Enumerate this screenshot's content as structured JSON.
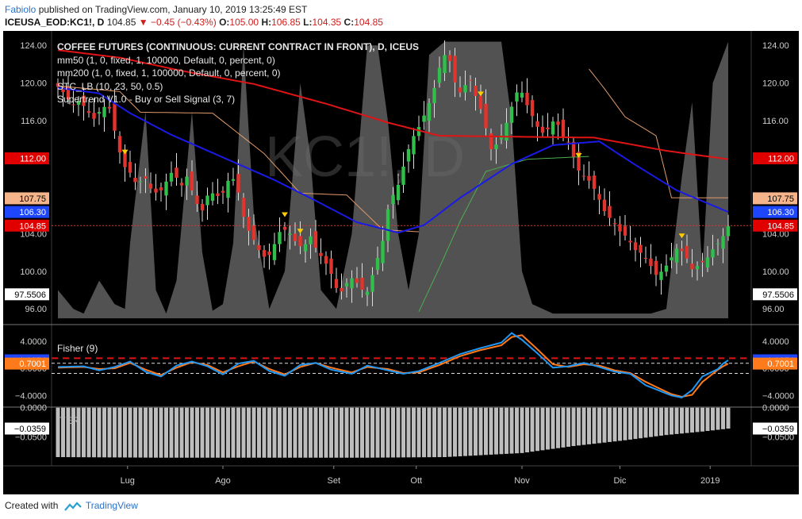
{
  "header": {
    "author": "Fabiolo",
    "published": "published on TradingView.com, January 10, 2019 13:25:49 EST",
    "symbol": "ICEUSA_EOD:KC1!, D",
    "last": "104.85",
    "change": "−0.45 (−0.43%)",
    "o_label": "O:",
    "o": "105.00",
    "h_label": "H:",
    "h": "106.85",
    "l_label": "L:",
    "l": "104.35",
    "c_label": "C:",
    "c": "104.85"
  },
  "legend": {
    "title": "COFFEE FUTURES (CONTINUOUS: CURRENT CONTRACT IN FRONT), D, ICEUS",
    "lines": [
      "mm50 (1, 0, fixed, 1, 100000, Default, 0, percent, 0)",
      "mm200 (1, 0, fixed, 1, 100000, Default, 0, percent, 0)",
      "STC_LB (10, 23, 50, 0.5)",
      "Supertrend V1.0 - Buy or Sell Signal (3, 7)"
    ]
  },
  "watermark": "KC1!, D",
  "panes": {
    "fisher_label": "Fisher (9)",
    "iter_label": "ITER"
  },
  "footer": {
    "created": "Created with",
    "brand": "TradingView"
  },
  "colors": {
    "bg": "#000000",
    "up": "#2fbf4a",
    "down": "#e0342d",
    "mm50": "#1a1ae6",
    "mm200": "#e01414",
    "stc": "#6e6e6e",
    "supertrend_up": "#4caf50",
    "supertrend_down": "#e09a6a",
    "fisher": "#2196f3",
    "fisher_trigger": "#ff7b1a",
    "signal_sell": "#ffcc00"
  },
  "chart_data": {
    "type": "candlestick",
    "x_tick_labels": [
      "Lug",
      "Ago",
      "Set",
      "Ott",
      "Nov",
      "Dic",
      "2019"
    ],
    "main": {
      "y_ticks": [
        96,
        100,
        104,
        108,
        112,
        116,
        120,
        124
      ],
      "y_tick_labels": [
        "96.00",
        "100.00",
        "104.00",
        "108.00",
        "112.00",
        "116.00",
        "120.00",
        "124.00"
      ],
      "ylim": [
        94.5,
        125.2
      ],
      "badges_left": [
        {
          "value": 97.5506,
          "text": "97.5506",
          "style": "white"
        },
        {
          "value": 112,
          "text": "112.00",
          "style": "red"
        },
        {
          "value": 107.75,
          "text": "107.75",
          "style": "peach"
        },
        {
          "value": 106.3,
          "text": "106.30",
          "style": "blue"
        },
        {
          "value": 104.85,
          "text": "104.85",
          "style": "red"
        }
      ],
      "badges_right": [
        {
          "value": 97.5506,
          "text": "97.5506",
          "style": "white"
        },
        {
          "value": 112,
          "text": "112.00",
          "style": "red"
        },
        {
          "value": 107.75,
          "text": "107.75",
          "style": "peach"
        },
        {
          "value": 106.3,
          "text": "106.30",
          "style": "blue"
        },
        {
          "value": 104.85,
          "text": "104.85",
          "style": "red"
        }
      ],
      "close_anchors": [
        119.6,
        118.8,
        117.6,
        118.2,
        117.1,
        116.2,
        117.2,
        117.8,
        114.5,
        111.3,
        110.5,
        109.1,
        110.1,
        108.6,
        108.2,
        109.5,
        110.8,
        108.9,
        110.2,
        107.5,
        106.4,
        108.6,
        107.9,
        108.4,
        110.4,
        108.5,
        104.9,
        103.6,
        102.1,
        101.2,
        102.8,
        104.6,
        104.2,
        103.1,
        102.4,
        103.8,
        102.1,
        101.1,
        99.6,
        97.4,
        98.7,
        99.4,
        98.1,
        97.8,
        100.6,
        102.9,
        107.6,
        108.6,
        111.3,
        113.9,
        115.2,
        116.9,
        118.8,
        121.8,
        123.6,
        120.2,
        118.7,
        120.8,
        118.5,
        116.6,
        112.9,
        113.6,
        115.2,
        117.6,
        119.7,
        117.8,
        116.2,
        114.6,
        115.1,
        116.3,
        114.4,
        113.6,
        110.9,
        110.1,
        109.4,
        107.8,
        106.1,
        105.3,
        104.2,
        103.6,
        102.3,
        101.9,
        100.9,
        99.6,
        100.1,
        101.3,
        102.6,
        101.8,
        100.2,
        100.7,
        101.3,
        102.5,
        103.3,
        104.8
      ],
      "mm50_anchors": [
        [
          0,
          119.5
        ],
        [
          8,
          118.9
        ],
        [
          14,
          116.8
        ],
        [
          22,
          114.5
        ],
        [
          32,
          112.1
        ],
        [
          42,
          109.7
        ],
        [
          50,
          107.5
        ],
        [
          58,
          105.2
        ],
        [
          66,
          104.1
        ],
        [
          71,
          104.9
        ],
        [
          78,
          107.8
        ],
        [
          88,
          111.4
        ],
        [
          96,
          113.4
        ],
        [
          105,
          113.8
        ],
        [
          112,
          111.3
        ],
        [
          120,
          108.6
        ],
        [
          130,
          106.3
        ]
      ],
      "mm200_anchors": [
        [
          0,
          123.5
        ],
        [
          12,
          122.7
        ],
        [
          24,
          121.3
        ],
        [
          38,
          119.9
        ],
        [
          52,
          117.8
        ],
        [
          64,
          115.8
        ],
        [
          74,
          114.4
        ],
        [
          88,
          114.3
        ],
        [
          104,
          114.2
        ],
        [
          118,
          112.8
        ],
        [
          130,
          111.9
        ]
      ],
      "supertrend_segments": [
        {
          "color": "supertrend_down",
          "points": [
            [
              0,
              119.7
            ],
            [
              12,
              119.1
            ],
            [
              16,
              116.9
            ],
            [
              30,
              116.8
            ],
            [
              40,
              112.5
            ],
            [
              47,
              108.3
            ],
            [
              56,
              108.1
            ],
            [
              63,
              104.4
            ],
            [
              70,
              104.2
            ]
          ]
        },
        {
          "color": "supertrend_up",
          "points": [
            [
              70,
              95.7
            ],
            [
              74,
              100.4
            ],
            [
              78,
              105.3
            ],
            [
              83,
              110.6
            ],
            [
              91,
              111.9
            ],
            [
              99,
              112.1
            ],
            [
              103,
              112.2
            ]
          ]
        },
        {
          "color": "supertrend_down",
          "points": [
            [
              103,
              121.5
            ],
            [
              106,
              119.4
            ],
            [
              110,
              116.4
            ],
            [
              116,
              114.4
            ],
            [
              119,
              107.8
            ],
            [
              130,
              107.8
            ]
          ]
        }
      ],
      "stc_anchors": [
        [
          0,
          98
        ],
        [
          3,
          96
        ],
        [
          5,
          95.5
        ],
        [
          8,
          99
        ],
        [
          11,
          96.5
        ],
        [
          13,
          96
        ],
        [
          14,
          103
        ],
        [
          17,
          117
        ],
        [
          19,
          98
        ],
        [
          21,
          95.5
        ],
        [
          23,
          99
        ],
        [
          26,
          117
        ],
        [
          28,
          102
        ],
        [
          30,
          95.8
        ],
        [
          32,
          96.5
        ],
        [
          34,
          103
        ],
        [
          36,
          124
        ],
        [
          38,
          106
        ],
        [
          41,
          96
        ],
        [
          44,
          100
        ],
        [
          47,
          120
        ],
        [
          49,
          112
        ],
        [
          51,
          98
        ],
        [
          54,
          96
        ],
        [
          57,
          104
        ],
        [
          60,
          124
        ],
        [
          62,
          124
        ],
        [
          64,
          116
        ],
        [
          66,
          104
        ],
        [
          68,
          98
        ],
        [
          70,
          104
        ],
        [
          72,
          123
        ],
        [
          75,
          124.4
        ],
        [
          86,
          124.4
        ],
        [
          88,
          116
        ],
        [
          90,
          100
        ],
        [
          92,
          96.5
        ],
        [
          96,
          95.5
        ],
        [
          104,
          95.5
        ],
        [
          108,
          95.5
        ],
        [
          115,
          95.5
        ],
        [
          118,
          96
        ],
        [
          121,
          110
        ],
        [
          123,
          118
        ],
        [
          125,
          100
        ],
        [
          127,
          120
        ],
        [
          130,
          124.4
        ],
        [
          130,
          95
        ]
      ],
      "signals": [
        {
          "i": 13,
          "pos": "above",
          "color": "signal_sell",
          "shape": "triangle"
        },
        {
          "i": 44,
          "pos": "above",
          "color": "signal_sell",
          "shape": "triangle"
        },
        {
          "i": 47,
          "pos": "above",
          "color": "signal_sell",
          "shape": "triangle"
        },
        {
          "i": 82,
          "pos": "above",
          "color": "signal_sell",
          "shape": "triangle"
        },
        {
          "i": 101,
          "pos": "above",
          "color": "signal_sell",
          "shape": "triangle"
        },
        {
          "i": 121,
          "pos": "above",
          "color": "signal_sell",
          "shape": "triangle"
        }
      ]
    },
    "fisher": {
      "y_ticks": [
        4,
        0,
        -4
      ],
      "y_tick_labels": [
        "4.0000",
        "0.0000",
        "−4.0000"
      ],
      "ylim": [
        -5.6,
        6.1
      ],
      "dashed_level_red": 1.5,
      "dashed_levels_white": [
        0.75,
        -0.75
      ],
      "badges_left": [
        {
          "value": 1.1854,
          "text": "1.1854",
          "style": "blue"
        },
        {
          "value": 0.7001,
          "text": "0.7001",
          "style": "orange"
        }
      ],
      "badges_right": [
        {
          "value": 1.1854,
          "text": "1.1854",
          "style": "blue"
        },
        {
          "value": 0.7001,
          "text": "0.7001",
          "style": "orange"
        }
      ],
      "fisher_anchors": [
        [
          0,
          0.2
        ],
        [
          5,
          0.3
        ],
        [
          8,
          -0.3
        ],
        [
          11,
          0.2
        ],
        [
          14,
          1.0
        ],
        [
          17,
          -0.5
        ],
        [
          20,
          -1.2
        ],
        [
          23,
          0.4
        ],
        [
          26,
          1.0
        ],
        [
          29,
          0.3
        ],
        [
          32,
          -0.9
        ],
        [
          35,
          0.7
        ],
        [
          38,
          1.1
        ],
        [
          41,
          -0.4
        ],
        [
          44,
          -1.1
        ],
        [
          47,
          0.5
        ],
        [
          50,
          0.8
        ],
        [
          53,
          -0.2
        ],
        [
          57,
          -0.8
        ],
        [
          60,
          0.4
        ],
        [
          64,
          -0.3
        ],
        [
          67,
          -0.8
        ],
        [
          70,
          -0.4
        ],
        [
          74,
          0.8
        ],
        [
          78,
          2.1
        ],
        [
          82,
          3.0
        ],
        [
          86,
          3.8
        ],
        [
          88,
          5.2
        ],
        [
          90,
          4.2
        ],
        [
          93,
          2.2
        ],
        [
          96,
          0.1
        ],
        [
          99,
          0.3
        ],
        [
          102,
          0.8
        ],
        [
          105,
          0.2
        ],
        [
          108,
          -0.5
        ],
        [
          111,
          -0.8
        ],
        [
          114,
          -2.5
        ],
        [
          117,
          -3.4
        ],
        [
          119,
          -4.0
        ],
        [
          121,
          -4.3
        ],
        [
          123,
          -3.2
        ],
        [
          125,
          -1.2
        ],
        [
          128,
          -0.1
        ],
        [
          129,
          0.7
        ],
        [
          130,
          1.2
        ]
      ],
      "trigger_anchors": [
        [
          0,
          0.1
        ],
        [
          5,
          0.2
        ],
        [
          8,
          -0.1
        ],
        [
          11,
          0.0
        ],
        [
          14,
          0.8
        ],
        [
          17,
          -0.2
        ],
        [
          20,
          -1.0
        ],
        [
          23,
          0.1
        ],
        [
          26,
          0.9
        ],
        [
          29,
          0.5
        ],
        [
          32,
          -0.6
        ],
        [
          35,
          0.3
        ],
        [
          38,
          1.0
        ],
        [
          41,
          -0.1
        ],
        [
          44,
          -0.9
        ],
        [
          47,
          0.2
        ],
        [
          50,
          0.8
        ],
        [
          53,
          0.1
        ],
        [
          57,
          -0.6
        ],
        [
          60,
          0.2
        ],
        [
          64,
          -0.1
        ],
        [
          67,
          -0.7
        ],
        [
          70,
          -0.6
        ],
        [
          74,
          0.5
        ],
        [
          78,
          1.8
        ],
        [
          82,
          2.7
        ],
        [
          86,
          3.4
        ],
        [
          88,
          4.6
        ],
        [
          90,
          4.9
        ],
        [
          93,
          2.8
        ],
        [
          96,
          0.6
        ],
        [
          99,
          0.2
        ],
        [
          102,
          0.6
        ],
        [
          105,
          0.4
        ],
        [
          108,
          -0.3
        ],
        [
          111,
          -0.7
        ],
        [
          114,
          -2.0
        ],
        [
          117,
          -3.1
        ],
        [
          119,
          -3.8
        ],
        [
          121,
          -4.2
        ],
        [
          123,
          -3.9
        ],
        [
          125,
          -2.0
        ],
        [
          128,
          -0.2
        ],
        [
          129,
          0.3
        ],
        [
          130,
          0.7
        ]
      ]
    },
    "iter": {
      "y_ticks": [
        0,
        -0.05
      ],
      "y_tick_labels": [
        "0.0000",
        "−0.0500"
      ],
      "ylim": [
        -0.1,
        0.001
      ],
      "badges_left": [
        {
          "value": -0.0359,
          "text": "−0.0359",
          "style": "white"
        }
      ],
      "badges_right": [
        {
          "value": -0.0359,
          "text": "−0.0359",
          "style": "white"
        }
      ],
      "bar_anchors": [
        [
          0,
          -0.085
        ],
        [
          20,
          -0.086
        ],
        [
          40,
          -0.086
        ],
        [
          60,
          -0.086
        ],
        [
          75,
          -0.085
        ],
        [
          90,
          -0.078
        ],
        [
          100,
          -0.066
        ],
        [
          110,
          -0.056
        ],
        [
          118,
          -0.047
        ],
        [
          125,
          -0.041
        ],
        [
          130,
          -0.036
        ]
      ]
    }
  }
}
